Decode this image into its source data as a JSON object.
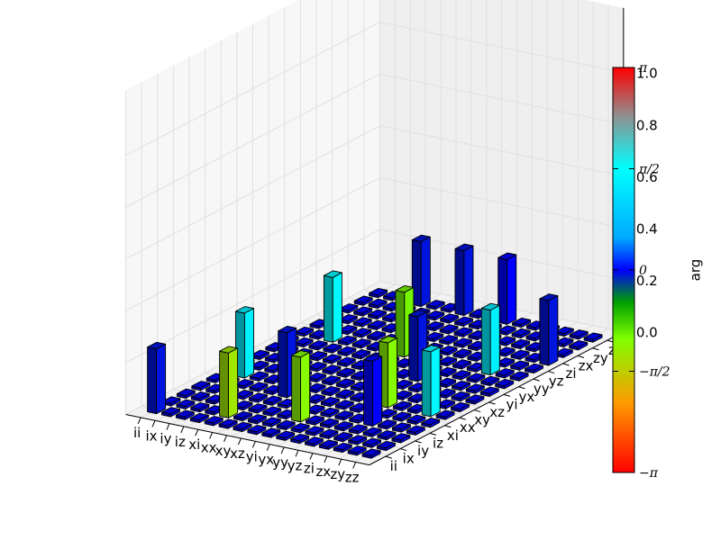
{
  "chart_data": {
    "type": "bar3d",
    "title": "",
    "x_tick_labels": [
      "ii",
      "ix",
      "iy",
      "iz",
      "xi",
      "xx",
      "xy",
      "xz",
      "yi",
      "yx",
      "yy",
      "yz",
      "zi",
      "zx",
      "zy",
      "zz"
    ],
    "y_tick_labels": [
      "ii",
      "ix",
      "iy",
      "iz",
      "xi",
      "xx",
      "xy",
      "xz",
      "yi",
      "yx",
      "yy",
      "yz",
      "zi",
      "zx",
      "zy",
      "zz"
    ],
    "zlim": [
      0,
      1.0
    ],
    "z_ticks": [
      "0.0",
      "0.2",
      "0.4",
      "0.6",
      "0.8",
      "1.0"
    ],
    "base_value": 0.01,
    "bars": [
      {
        "x": "ii",
        "y": "ii",
        "value": 0.25,
        "phase": -0.1
      },
      {
        "x": "ix",
        "y": "xx",
        "value": 0.25,
        "phase": 1.4
      },
      {
        "x": "iy",
        "y": "yy",
        "value": 0.25,
        "phase": 1.5
      },
      {
        "x": "iz",
        "y": "zz",
        "value": 0.25,
        "phase": -0.1
      },
      {
        "x": "xi",
        "y": "ix",
        "value": 0.25,
        "phase": -1.7
      },
      {
        "x": "xx",
        "y": "xi",
        "value": 0.25,
        "phase": -0.1
      },
      {
        "x": "xy",
        "y": "zz",
        "value": 0.25,
        "phase": -0.1
      },
      {
        "x": "xz",
        "y": "yy",
        "value": 0.25,
        "phase": -1.5
      },
      {
        "x": "yi",
        "y": "iy",
        "value": 0.25,
        "phase": -1.6
      },
      {
        "x": "yx",
        "y": "zz",
        "value": 0.25,
        "phase": 0.0
      },
      {
        "x": "yy",
        "y": "yi",
        "value": 0.25,
        "phase": -0.1
      },
      {
        "x": "yz",
        "y": "xx",
        "value": 0.25,
        "phase": -1.6
      },
      {
        "x": "zi",
        "y": "iz",
        "value": 0.25,
        "phase": 0.0
      },
      {
        "x": "zx",
        "y": "yy",
        "value": 0.25,
        "phase": 1.4
      },
      {
        "x": "zy",
        "y": "xx",
        "value": 0.25,
        "phase": 1.5
      },
      {
        "x": "zz",
        "y": "zi",
        "value": 0.25,
        "phase": -0.1
      }
    ],
    "colorbar": {
      "label": "arg",
      "ticks": [
        "π",
        "π/2",
        "0",
        "−π/2",
        "−π"
      ],
      "range": [
        -3.14159,
        3.14159
      ],
      "colormap": [
        "#ff0000",
        "#ff9900",
        "#80ff00",
        "#0000ff",
        "#00ffff",
        "#ff0000"
      ]
    },
    "grid": true
  }
}
